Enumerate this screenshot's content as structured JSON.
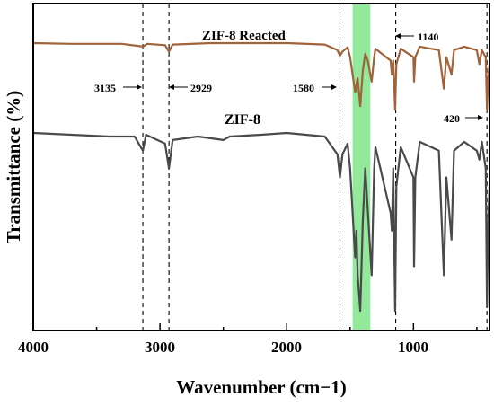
{
  "chart_data": {
    "type": "line",
    "xlabel": "Wavenumber (cm−1)",
    "ylabel": "Transmittance (%)",
    "xlim": [
      4000,
      400
    ],
    "x_reversed": true,
    "x_ticks": [
      4000,
      3000,
      2000,
      1000
    ],
    "y_ticks": "none",
    "grid": false,
    "legend": "none",
    "highlight_band": {
      "from": 1480,
      "to": 1340,
      "color": "#6de07a"
    },
    "reference_lines": [
      3135,
      2929,
      1580,
      1140,
      420
    ],
    "annotations": [
      {
        "text": "3135",
        "x": 3135,
        "arrow": "right"
      },
      {
        "text": "2929",
        "x": 2929,
        "arrow": "left"
      },
      {
        "text": "1580",
        "x": 1580,
        "arrow": "right"
      },
      {
        "text": "1140",
        "x": 1140,
        "arrow": "left"
      },
      {
        "text": "420",
        "x": 420,
        "arrow": "right"
      }
    ],
    "series": [
      {
        "name": "ZIF-8 Reacted",
        "color": "#a0633a",
        "accent_color": "#e0554a",
        "baseline": 0.0,
        "points": [
          [
            4000,
            0.0
          ],
          [
            3700,
            0.01
          ],
          [
            3300,
            0.01
          ],
          [
            3135,
            0.05
          ],
          [
            3100,
            0.01
          ],
          [
            2960,
            0.03
          ],
          [
            2929,
            0.12
          ],
          [
            2900,
            0.02
          ],
          [
            2600,
            0.0
          ],
          [
            2000,
            0.0
          ],
          [
            1700,
            0.02
          ],
          [
            1600,
            0.1
          ],
          [
            1580,
            0.18
          ],
          [
            1560,
            0.12
          ],
          [
            1520,
            0.06
          ],
          [
            1500,
            0.2
          ],
          [
            1460,
            0.7
          ],
          [
            1440,
            0.5
          ],
          [
            1420,
            0.9
          ],
          [
            1400,
            0.4
          ],
          [
            1380,
            0.15
          ],
          [
            1360,
            0.25
          ],
          [
            1330,
            0.55
          ],
          [
            1310,
            0.2
          ],
          [
            1300,
            0.08
          ],
          [
            1180,
            0.25
          ],
          [
            1170,
            0.45
          ],
          [
            1160,
            0.25
          ],
          [
            1145,
            0.95
          ],
          [
            1135,
            0.3
          ],
          [
            1100,
            0.08
          ],
          [
            1000,
            0.2
          ],
          [
            995,
            0.55
          ],
          [
            985,
            0.2
          ],
          [
            950,
            0.05
          ],
          [
            800,
            0.1
          ],
          [
            760,
            0.65
          ],
          [
            740,
            0.2
          ],
          [
            700,
            0.45
          ],
          [
            680,
            0.1
          ],
          [
            600,
            0.05
          ],
          [
            500,
            0.1
          ],
          [
            480,
            0.3
          ],
          [
            460,
            0.1
          ],
          [
            430,
            0.2
          ],
          [
            420,
            0.95
          ],
          [
            410,
            0.5
          ],
          [
            400,
            0.3
          ]
        ]
      },
      {
        "name": "ZIF-8",
        "color": "#4a4a4a",
        "accent_color": "#2f7a3b",
        "baseline": 0.0,
        "points": [
          [
            4000,
            0.0
          ],
          [
            3700,
            0.01
          ],
          [
            3400,
            0.02
          ],
          [
            3200,
            0.02
          ],
          [
            3135,
            0.1
          ],
          [
            3110,
            0.01
          ],
          [
            2960,
            0.06
          ],
          [
            2929,
            0.2
          ],
          [
            2900,
            0.04
          ],
          [
            2700,
            0.02
          ],
          [
            2500,
            0.04
          ],
          [
            2450,
            0.02
          ],
          [
            2200,
            0.01
          ],
          [
            2000,
            0.0
          ],
          [
            1700,
            0.02
          ],
          [
            1600,
            0.12
          ],
          [
            1580,
            0.25
          ],
          [
            1560,
            0.12
          ],
          [
            1520,
            0.06
          ],
          [
            1500,
            0.2
          ],
          [
            1460,
            0.7
          ],
          [
            1450,
            0.55
          ],
          [
            1440,
            0.8
          ],
          [
            1420,
            1.0
          ],
          [
            1400,
            0.5
          ],
          [
            1380,
            0.2
          ],
          [
            1330,
            0.8
          ],
          [
            1310,
            0.2
          ],
          [
            1300,
            0.08
          ],
          [
            1180,
            0.45
          ],
          [
            1170,
            0.55
          ],
          [
            1160,
            0.2
          ],
          [
            1145,
            1.0
          ],
          [
            1135,
            0.3
          ],
          [
            1100,
            0.08
          ],
          [
            1000,
            0.25
          ],
          [
            995,
            0.75
          ],
          [
            985,
            0.25
          ],
          [
            950,
            0.05
          ],
          [
            800,
            0.1
          ],
          [
            760,
            0.8
          ],
          [
            740,
            0.25
          ],
          [
            700,
            0.6
          ],
          [
            680,
            0.1
          ],
          [
            600,
            0.05
          ],
          [
            500,
            0.1
          ],
          [
            480,
            0.15
          ],
          [
            460,
            0.05
          ],
          [
            430,
            0.2
          ],
          [
            420,
            0.98
          ],
          [
            410,
            0.5
          ],
          [
            400,
            0.3
          ]
        ]
      }
    ]
  }
}
